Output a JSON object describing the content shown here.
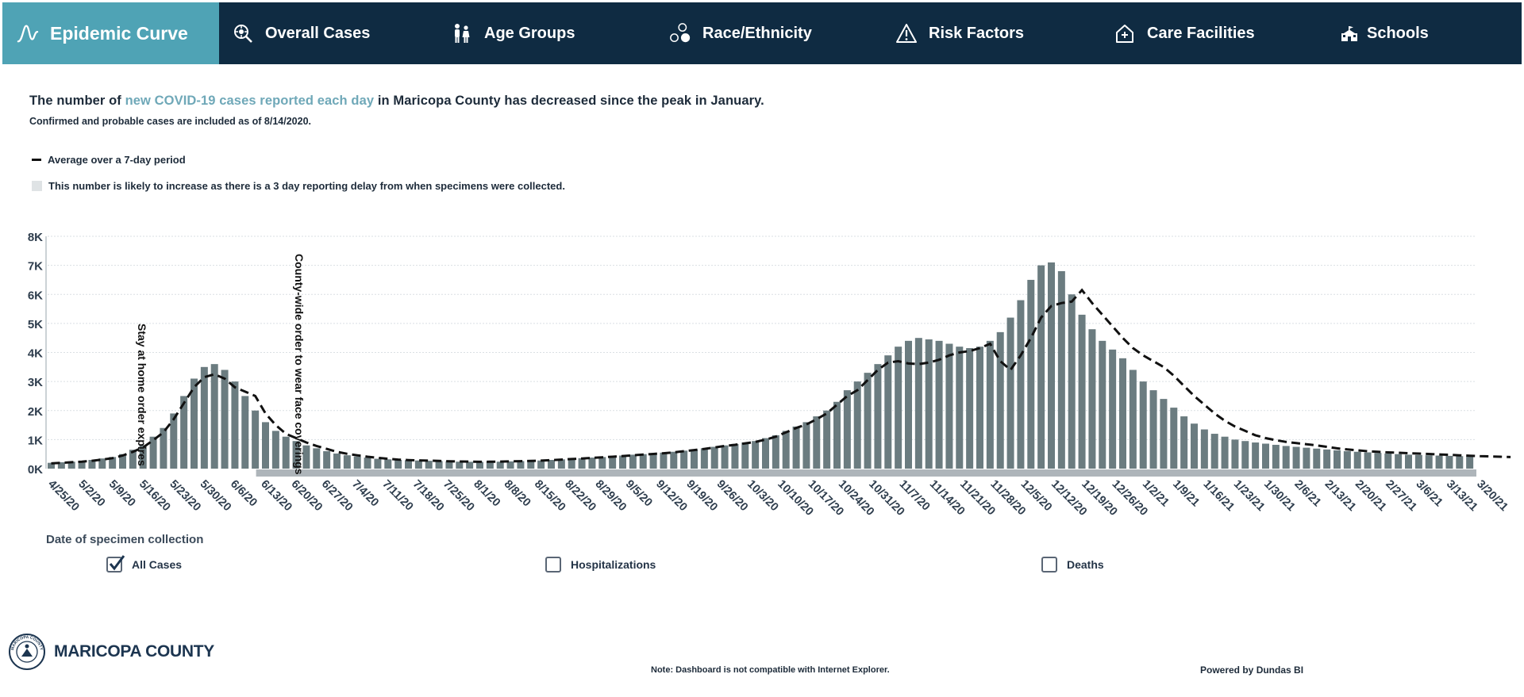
{
  "nav": {
    "tabs": [
      {
        "label": "Epidemic Curve",
        "icon": "chart-curve-icon",
        "active": true
      },
      {
        "label": "Overall Cases",
        "icon": "virus-magnifier-icon",
        "active": false
      },
      {
        "label": "Age Groups",
        "icon": "family-icon",
        "active": false
      },
      {
        "label": "Race/Ethnicity",
        "icon": "circles-icon",
        "active": false
      },
      {
        "label": "Risk Factors",
        "icon": "warning-icon",
        "active": false
      },
      {
        "label": "Care Facilities",
        "icon": "house-plus-icon",
        "active": false
      },
      {
        "label": "Schools",
        "icon": "school-icon",
        "active": false
      }
    ]
  },
  "headline": {
    "prefix": "The number of ",
    "highlight": "new COVID-19 cases reported each day",
    "suffix": " in Maricopa County has decreased since the peak in January."
  },
  "subheadline": "Confirmed and probable cases are included as of 8/14/2020.",
  "legend": {
    "avg_label": "Average over a 7-day period",
    "delay_label": "This number is likely to increase as there is a 3 day reporting delay from when specimens were collected."
  },
  "colors": {
    "nav_bg": "#0f2b42",
    "nav_active": "#4fa3b5",
    "bar": "#6b7c80",
    "highlight_text": "#6fa8b8",
    "avg_line": "#111111",
    "delay_box": "#dfe3e5"
  },
  "chart_data": {
    "type": "bar",
    "title": "",
    "xlabel": "Date of specimen collection",
    "ylabel": "",
    "ylim": [
      0,
      8000
    ],
    "y_ticks": [
      "0K",
      "1K",
      "2K",
      "3K",
      "4K",
      "5K",
      "6K",
      "7K",
      "8K"
    ],
    "x_ticks": [
      "4/25/20",
      "5/2/20",
      "5/9/20",
      "5/16/20",
      "5/23/20",
      "5/30/20",
      "6/6/20",
      "6/13/20",
      "6/20/20",
      "6/27/20",
      "7/4/20",
      "7/11/20",
      "7/18/20",
      "7/25/20",
      "8/1/20",
      "8/8/20",
      "8/15/20",
      "8/22/20",
      "8/29/20",
      "9/5/20",
      "9/12/20",
      "9/19/20",
      "9/26/20",
      "10/3/20",
      "10/10/20",
      "10/17/20",
      "10/24/20",
      "10/31/20",
      "11/7/20",
      "11/14/20",
      "11/21/20",
      "11/28/20",
      "12/5/20",
      "12/12/20",
      "12/19/20",
      "12/26/20",
      "1/2/21",
      "1/9/21",
      "1/16/21",
      "1/23/21",
      "1/30/21",
      "2/6/21",
      "2/13/21",
      "2/20/21",
      "2/27/21",
      "3/6/21",
      "3/13/21",
      "3/20/21"
    ],
    "series": [
      {
        "type": "bar",
        "values": [
          200,
          220,
          240,
          260,
          300,
          350,
          400,
          500,
          650,
          800,
          1100,
          1400,
          1900,
          2500,
          3100,
          3500,
          3600,
          3400,
          3000,
          2500,
          2000,
          1600,
          1300,
          1100,
          950,
          800,
          700,
          600,
          520,
          460,
          420,
          380,
          340,
          320,
          300,
          290,
          280,
          270,
          260,
          250,
          240,
          235,
          230,
          235,
          240,
          250,
          260,
          270,
          280,
          300,
          320,
          340,
          360,
          380,
          400,
          420,
          450,
          480,
          500,
          520,
          550,
          580,
          620,
          660,
          700,
          750,
          800,
          850,
          900,
          950,
          1050,
          1150,
          1300,
          1450,
          1600,
          1800,
          2000,
          2300,
          2700,
          3000,
          3300,
          3600,
          3900,
          4200,
          4400,
          4500,
          4450,
          4400,
          4300,
          4200,
          4150,
          4200,
          4400,
          4700,
          5200,
          5800,
          6500,
          7000,
          7100,
          6800,
          6000,
          5300,
          4800,
          4400,
          4100,
          3800,
          3400,
          3000,
          2700,
          2400,
          2100,
          1800,
          1550,
          1350,
          1200,
          1100,
          1000,
          950,
          900,
          860,
          820,
          780,
          750,
          720,
          690,
          660,
          630,
          600,
          580,
          560,
          540,
          520,
          500,
          480,
          470,
          460,
          450,
          440,
          430,
          420
        ]
      },
      {
        "type": "line",
        "name": "Average over a 7-day period",
        "values": [
          180,
          200,
          220,
          240,
          270,
          310,
          360,
          450,
          580,
          730,
          980,
          1250,
          1700,
          2250,
          2800,
          3150,
          3250,
          3100,
          2800,
          2650,
          2500,
          1900,
          1500,
          1200,
          1050,
          900,
          780,
          680,
          580,
          510,
          460,
          410,
          370,
          340,
          310,
          295,
          285,
          275,
          265,
          255,
          245,
          240,
          235,
          238,
          242,
          250,
          258,
          266,
          276,
          292,
          310,
          330,
          350,
          370,
          390,
          410,
          435,
          460,
          485,
          505,
          530,
          560,
          600,
          640,
          680,
          730,
          780,
          820,
          870,
          920,
          1000,
          1100,
          1250,
          1400,
          1520,
          1700,
          1900,
          2200,
          2500,
          2700,
          3050,
          3400,
          3650,
          3700,
          3620,
          3600,
          3650,
          3750,
          3900,
          4000,
          4050,
          4150,
          4300,
          3700,
          3400,
          3900,
          4500,
          5200,
          5600,
          5700,
          5750,
          6150,
          5700,
          5300,
          4900,
          4500,
          4150,
          3900,
          3700,
          3500,
          3200,
          2850,
          2500,
          2200,
          1900,
          1650,
          1450,
          1300,
          1150,
          1050,
          980,
          920,
          880,
          840,
          800,
          750,
          700,
          660,
          630,
          600,
          580,
          560,
          545,
          530,
          520,
          505,
          490,
          475,
          460,
          445,
          430,
          420,
          410,
          400
        ]
      }
    ],
    "annotations": [
      {
        "text": "Stay at home order expires",
        "date": "5/15/20"
      },
      {
        "text": "County-wide order to wear face coverings",
        "date": "6/19/20"
      }
    ],
    "grid": true,
    "legend": "top-left",
    "reporting_delay_indicated": true
  },
  "filters": [
    {
      "label": "All Cases",
      "checked": true
    },
    {
      "label": "Hospitalizations",
      "checked": false
    },
    {
      "label": "Deaths",
      "checked": false
    }
  ],
  "footer": {
    "org": "MARICOPA COUNTY",
    "seal_text": "MARICOPA COUNTY",
    "note": "Note: Dashboard is not compatible with Internet Explorer.",
    "powered": "Powered by Dundas BI"
  }
}
